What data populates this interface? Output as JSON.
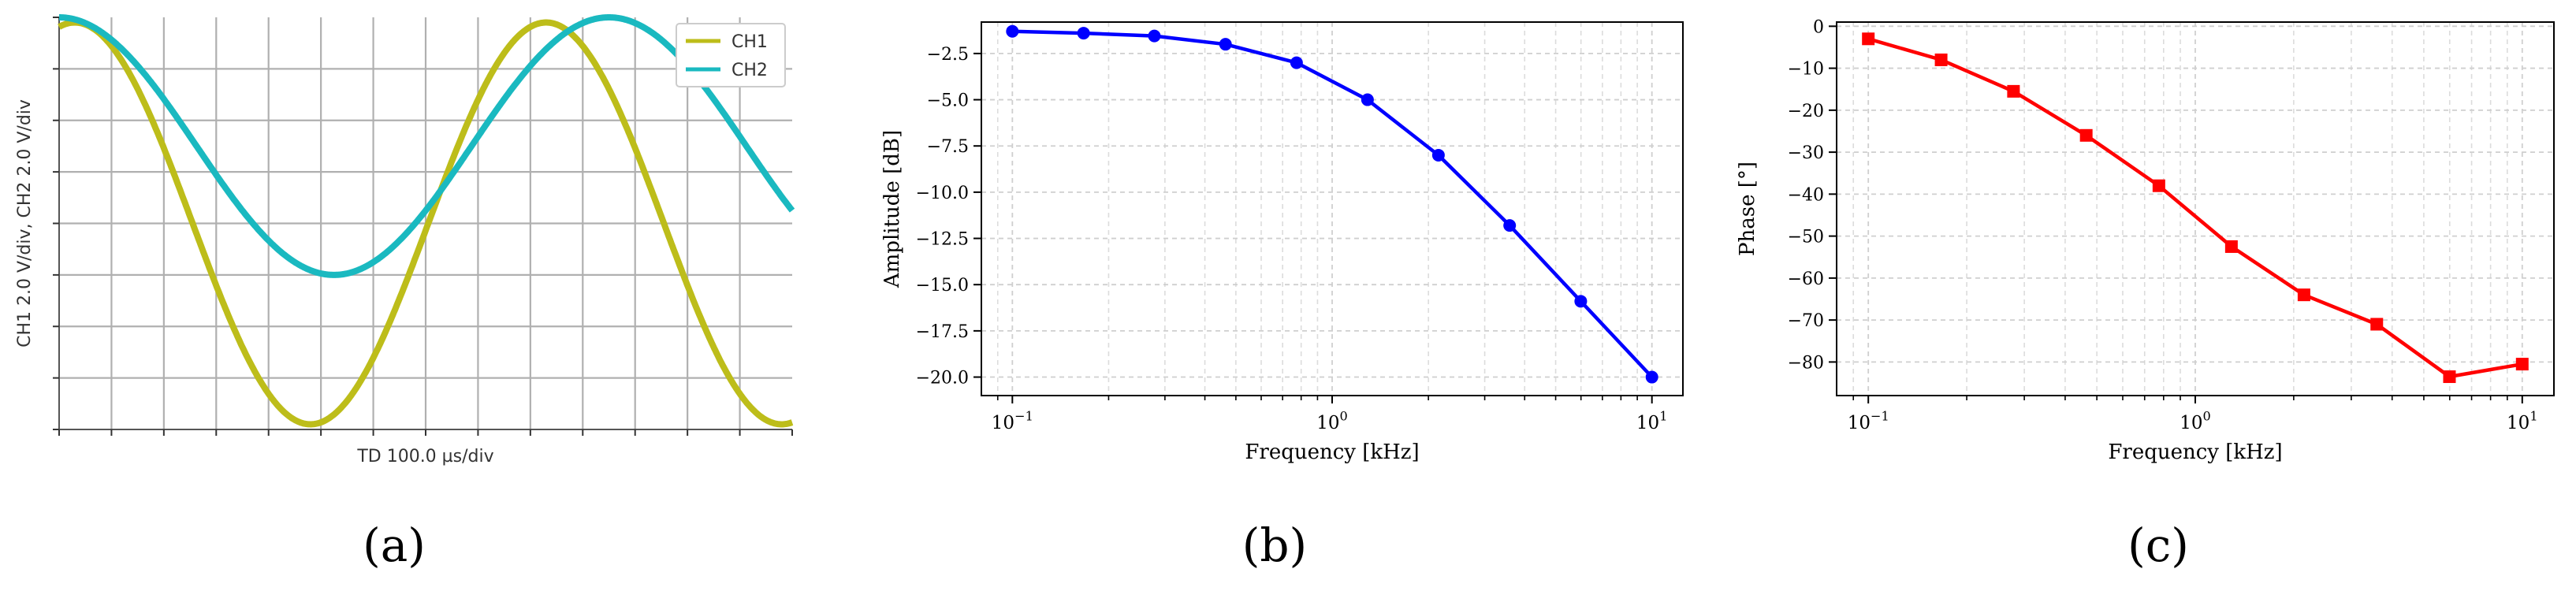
{
  "panels": [
    {
      "label": "(a)",
      "chart_data": {
        "type": "line",
        "style": "oscilloscope",
        "xlabel": "TD 100.0 µs/div",
        "ylabel": "CH1 2.0  V/div, CH2 2.0  V/div",
        "grid": true,
        "legend_position": "top-right",
        "x_divisions": 14,
        "y_divisions": 8,
        "series": [
          {
            "name": "CH1",
            "color": "#bdbd1a",
            "amplitude_div": 3.9,
            "offset_div": 0.0,
            "period_div": 9.0,
            "peak_x_div": 9.3
          },
          {
            "name": "CH2",
            "color": "#1ab9c0",
            "amplitude_div": 2.5,
            "offset_div": 1.5,
            "period_div": 10.5,
            "peak_x_div": 10.5
          }
        ]
      }
    },
    {
      "label": "(b)",
      "chart_data": {
        "type": "line",
        "xlabel": "Frequency [kHz]",
        "ylabel": "Amplitude [dB]",
        "xscale": "log",
        "xlim": [
          0.08,
          12.5
        ],
        "ylim": [
          -21.0,
          -0.8
        ],
        "grid": true,
        "color": "#0000ff",
        "marker": "circle",
        "yticks": [
          "-2.5",
          "-5.0",
          "-7.5",
          "-10.0",
          "-12.5",
          "-15.0",
          "-17.5",
          "-20.0"
        ],
        "xticks": [
          "10^-1",
          "10^0",
          "10^1"
        ],
        "x": [
          0.1,
          0.167,
          0.278,
          0.464,
          0.774,
          1.29,
          2.15,
          3.59,
          5.99,
          10.0
        ],
        "y": [
          -1.3,
          -1.4,
          -1.55,
          -2.0,
          -3.0,
          -5.0,
          -8.0,
          -11.8,
          -15.9,
          -20.0
        ]
      }
    },
    {
      "label": "(c)",
      "chart_data": {
        "type": "line",
        "xlabel": "Frequency [kHz]",
        "ylabel": "Phase [°]",
        "xscale": "log",
        "xlim": [
          0.08,
          12.5
        ],
        "ylim": [
          -88.0,
          1.0
        ],
        "grid": true,
        "color": "#ff0000",
        "marker": "square",
        "yticks": [
          "0",
          "-10",
          "-20",
          "-30",
          "-40",
          "-50",
          "-60",
          "-70",
          "-80"
        ],
        "xticks": [
          "10^-1",
          "10^0",
          "10^1"
        ],
        "x": [
          0.1,
          0.167,
          0.278,
          0.464,
          0.774,
          1.29,
          2.15,
          3.59,
          5.99,
          10.0
        ],
        "y": [
          -3.0,
          -8.0,
          -15.5,
          -26.0,
          -38.0,
          -52.5,
          -64.0,
          -71.0,
          -83.5,
          -80.5
        ]
      }
    }
  ]
}
